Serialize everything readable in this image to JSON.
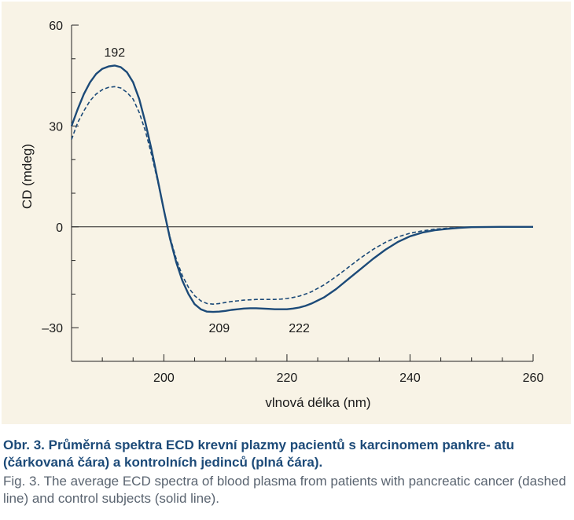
{
  "chart_data": {
    "type": "line",
    "xlabel": "vlnová délka (nm)",
    "ylabel": "CD (mdeg)",
    "xlim": [
      185,
      260
    ],
    "ylim": [
      -40,
      60
    ],
    "x_ticks": [
      200,
      220,
      240,
      260
    ],
    "y_ticks": [
      60,
      30,
      0,
      -30
    ],
    "y_tick_labels": [
      "60",
      "30",
      "0",
      "–30"
    ],
    "zero_line": true,
    "grid": false,
    "series": [
      {
        "style": "solid",
        "color": "#1c4a78",
        "x": [
          185,
          186,
          187,
          188,
          189,
          190,
          191,
          192,
          193,
          194,
          195,
          196,
          197,
          198,
          199,
          200,
          201,
          202,
          203,
          204,
          205,
          206,
          207,
          208,
          209,
          210,
          211,
          212,
          213,
          214,
          215,
          216,
          217,
          218,
          219,
          220,
          221,
          222,
          223,
          224,
          226,
          228,
          230,
          232,
          234,
          236,
          238,
          240,
          242,
          244,
          246,
          248,
          250,
          255,
          260
        ],
        "y": [
          30,
          35,
          39.5,
          43,
          45.5,
          47,
          47.7,
          48,
          47.5,
          46,
          43,
          38,
          31,
          23,
          14,
          5,
          -3.5,
          -10.5,
          -16,
          -20,
          -23,
          -24.5,
          -25.2,
          -25.3,
          -25.2,
          -25,
          -24.7,
          -24.5,
          -24.3,
          -24.2,
          -24.2,
          -24.3,
          -24.4,
          -24.5,
          -24.5,
          -24.5,
          -24.3,
          -24,
          -23.5,
          -22.8,
          -21,
          -18.5,
          -15.5,
          -12.5,
          -9.5,
          -6.8,
          -4.5,
          -2.8,
          -1.7,
          -1,
          -0.6,
          -0.3,
          -0.1,
          0,
          0
        ]
      },
      {
        "style": "dashed",
        "color": "#1c4a78",
        "x": [
          185,
          186,
          187,
          188,
          189,
          190,
          191,
          192,
          193,
          194,
          195,
          196,
          197,
          198,
          199,
          200,
          201,
          202,
          203,
          204,
          205,
          206,
          207,
          208,
          209,
          210,
          211,
          212,
          213,
          214,
          215,
          216,
          217,
          218,
          219,
          220,
          221,
          222,
          223,
          224,
          226,
          228,
          230,
          232,
          234,
          236,
          238,
          240,
          242,
          244,
          246,
          248,
          250,
          255,
          260
        ],
        "y": [
          26,
          31,
          34.5,
          37.5,
          39.5,
          40.8,
          41.5,
          41.7,
          41.3,
          40,
          38,
          34,
          28.5,
          21.5,
          13.5,
          5,
          -3,
          -9.5,
          -14.5,
          -18,
          -20.5,
          -22,
          -22.8,
          -23,
          -22.8,
          -22.5,
          -22.2,
          -22,
          -21.8,
          -21.7,
          -21.6,
          -21.6,
          -21.6,
          -21.6,
          -21.5,
          -21.3,
          -21,
          -20.6,
          -20,
          -19.3,
          -17.3,
          -14.8,
          -12,
          -9.2,
          -6.7,
          -4.6,
          -3,
          -1.9,
          -1.2,
          -0.7,
          -0.4,
          -0.2,
          -0.1,
          0,
          0
        ]
      }
    ],
    "annotations": [
      {
        "text": "192",
        "x": 192,
        "y": 52
      },
      {
        "text": "209",
        "x": 209,
        "y": -30
      },
      {
        "text": "222",
        "x": 222,
        "y": -30
      }
    ]
  },
  "caption": {
    "cz": "Obr. 3. Průměrná spektra ECD krevní plazmy pacientů s karcinomem pankre- atu (čárkovaná čára) a kontrolních jedinců (plná čára).",
    "en": "Fig. 3. The average ECD spectra of blood plasma from patients with pancreatic cancer (dashed line) and control subjects (solid line)."
  }
}
